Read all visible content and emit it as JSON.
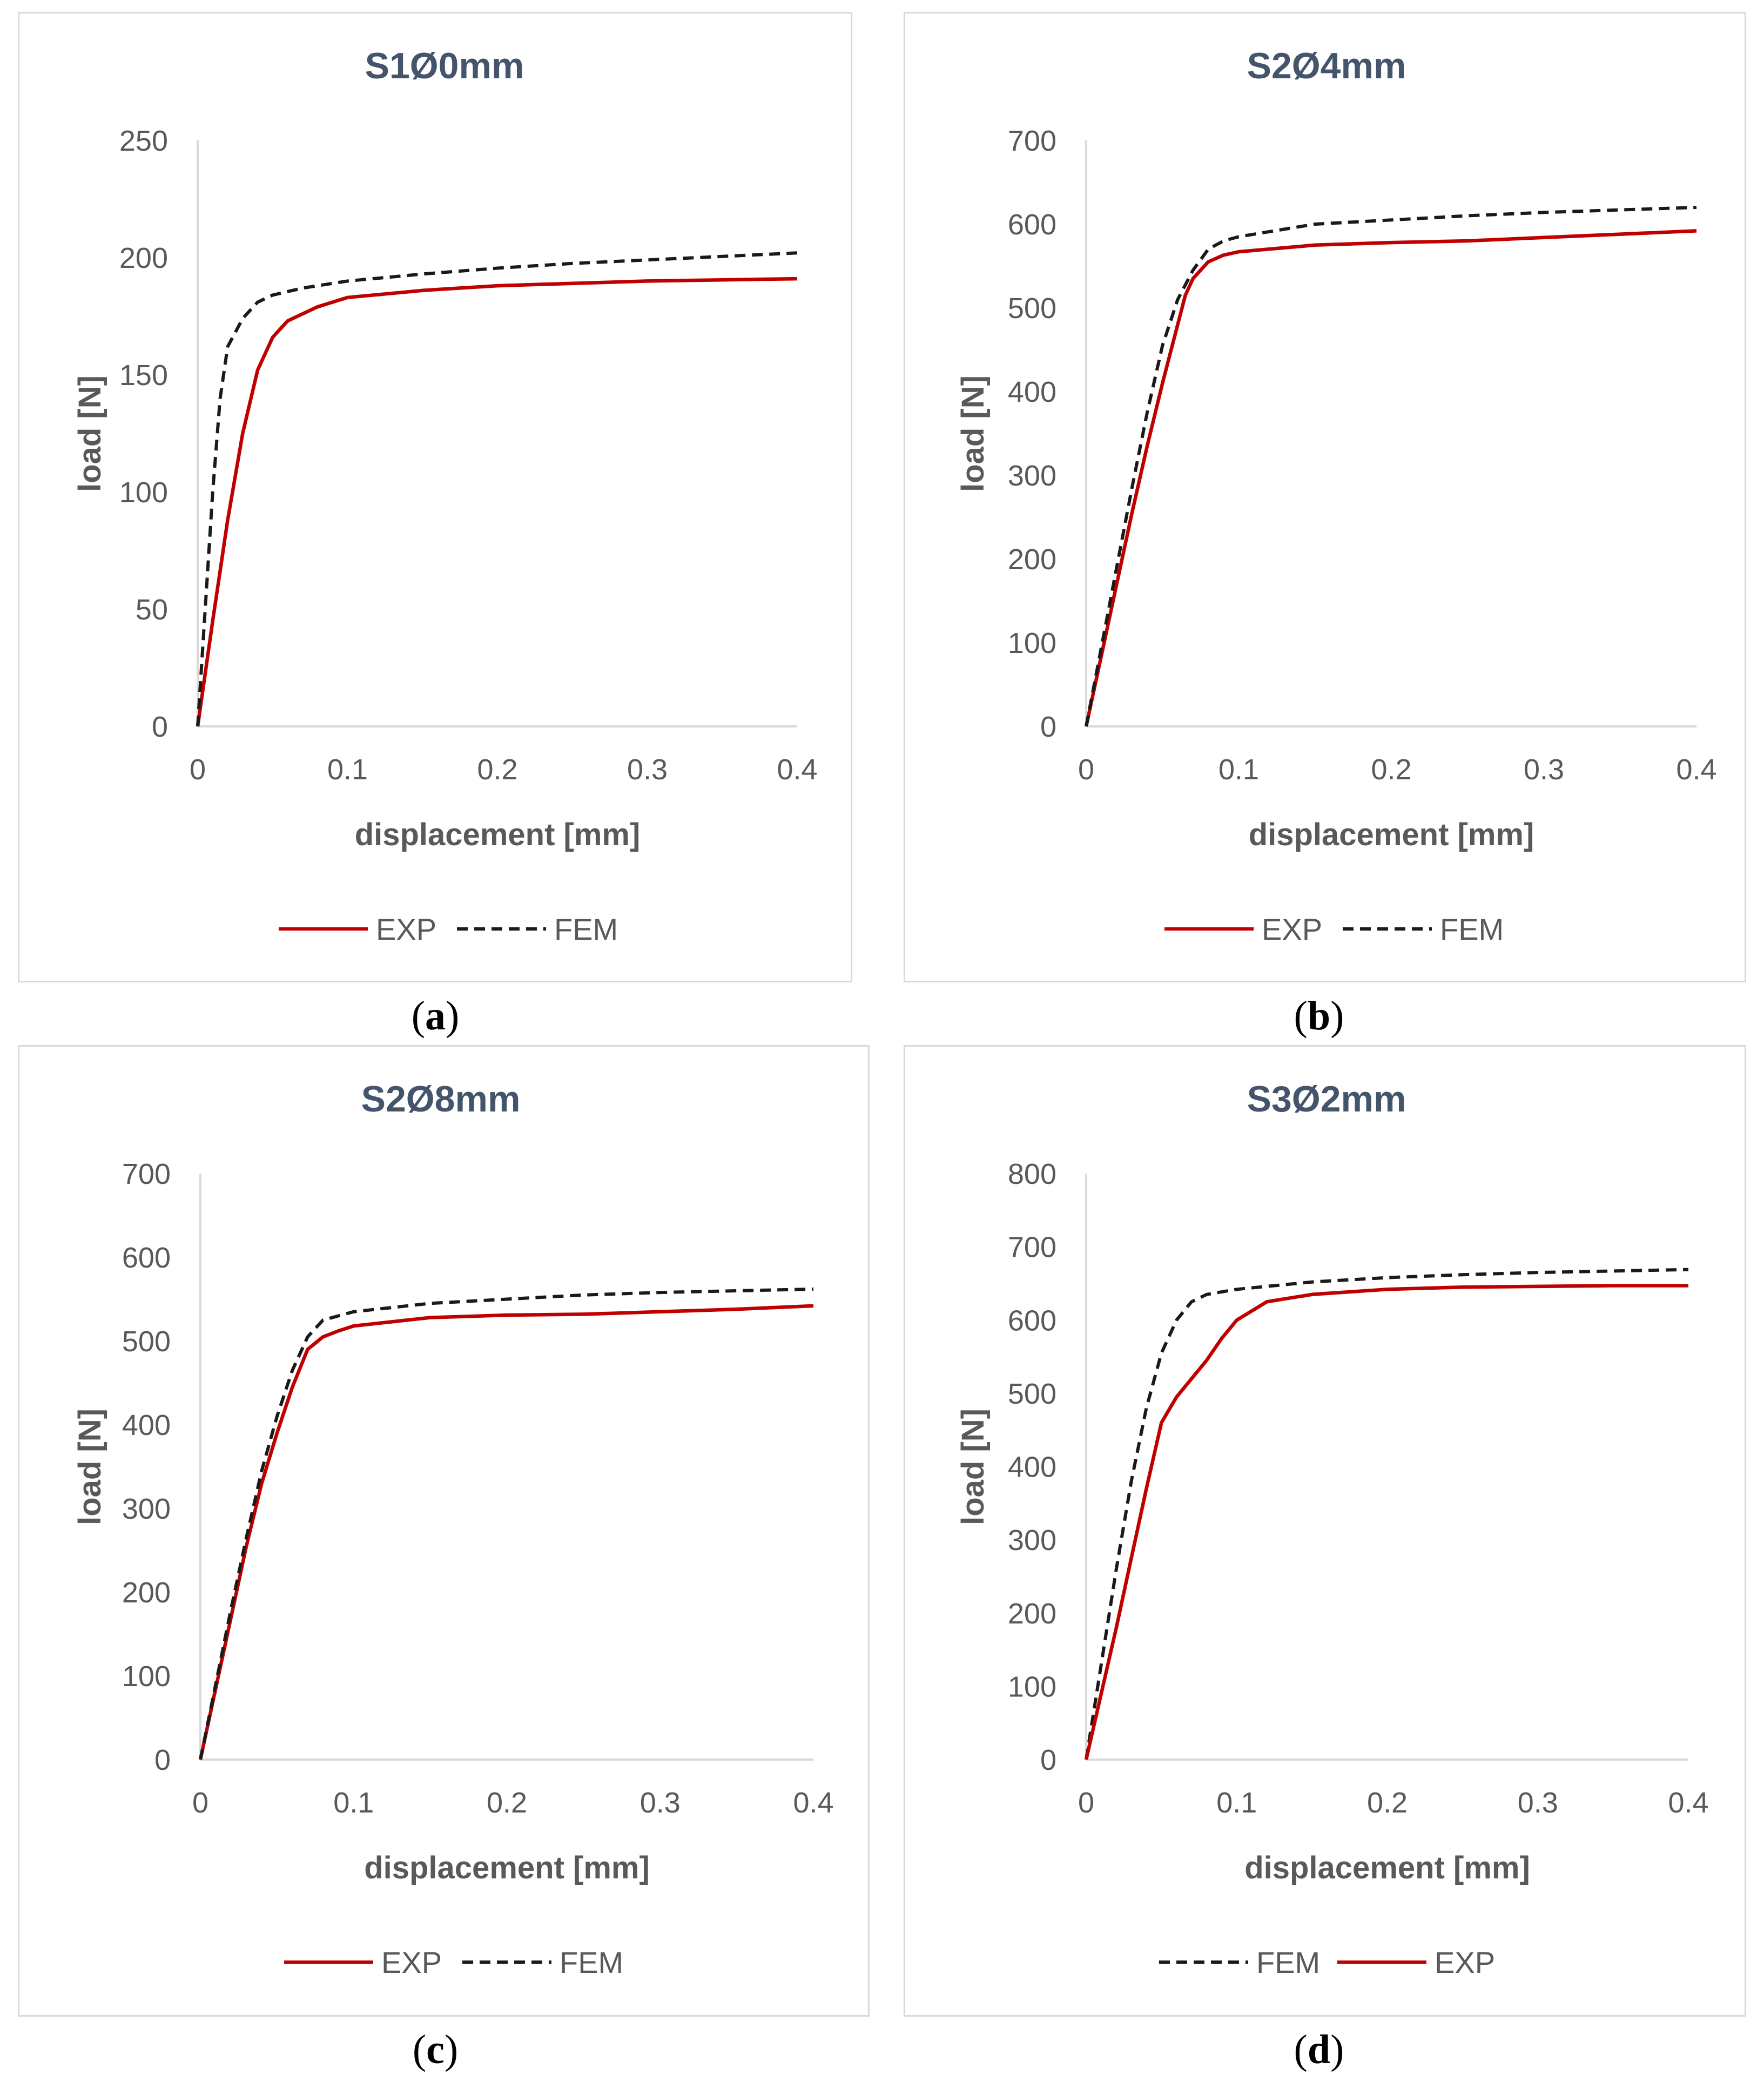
{
  "colors": {
    "exp": "#c00000",
    "fem": "#1a1a1a",
    "axis": "#d9d9d9",
    "text": "#595959",
    "title": "#44546a"
  },
  "chart_data": [
    {
      "type": "line",
      "panel_label": "a",
      "title": "S1Ø0mm",
      "xlabel": "displacement [mm]",
      "ylabel": "load [N]",
      "xlim": [
        0,
        0.4
      ],
      "ylim": [
        0,
        250
      ],
      "xticks": [
        "0",
        "0.1",
        "0.2",
        "0.3",
        "0.4"
      ],
      "yticks": [
        "0",
        "50",
        "100",
        "150",
        "200",
        "250"
      ],
      "grid": false,
      "legend_order": [
        "EXP",
        "FEM"
      ],
      "series": [
        {
          "name": "EXP",
          "style": "solid",
          "x": [
            0,
            0.01,
            0.02,
            0.03,
            0.04,
            0.05,
            0.06,
            0.08,
            0.1,
            0.15,
            0.2,
            0.25,
            0.3,
            0.35,
            0.4
          ],
          "y": [
            0,
            45,
            88,
            125,
            152,
            166,
            173,
            179,
            183,
            186,
            188,
            189,
            190,
            190.5,
            191
          ]
        },
        {
          "name": "FEM",
          "style": "dashed",
          "x": [
            0,
            0.005,
            0.01,
            0.015,
            0.02,
            0.03,
            0.04,
            0.05,
            0.07,
            0.1,
            0.15,
            0.2,
            0.25,
            0.3,
            0.35,
            0.4
          ],
          "y": [
            0,
            50,
            100,
            140,
            162,
            174,
            181,
            184,
            187,
            190,
            193,
            195.5,
            197.5,
            199,
            200.5,
            202
          ]
        }
      ]
    },
    {
      "type": "line",
      "panel_label": "b",
      "title": "S2Ø4mm",
      "xlabel": "displacement [mm]",
      "ylabel": "load [N]",
      "xlim": [
        0,
        0.4
      ],
      "ylim": [
        0,
        700
      ],
      "xticks": [
        "0",
        "0.1",
        "0.2",
        "0.3",
        "0.4"
      ],
      "yticks": [
        "0",
        "100",
        "200",
        "300",
        "400",
        "500",
        "600",
        "700"
      ],
      "grid": false,
      "legend_order": [
        "EXP",
        "FEM"
      ],
      "series": [
        {
          "name": "EXP",
          "style": "solid",
          "x": [
            0,
            0.01,
            0.02,
            0.03,
            0.04,
            0.05,
            0.06,
            0.065,
            0.07,
            0.08,
            0.09,
            0.1,
            0.15,
            0.2,
            0.25,
            0.3,
            0.35,
            0.4
          ],
          "y": [
            0,
            85,
            170,
            255,
            335,
            410,
            480,
            515,
            535,
            555,
            563,
            567,
            575,
            578,
            580,
            584,
            588,
            592
          ]
        },
        {
          "name": "FEM",
          "style": "dashed",
          "x": [
            0,
            0.01,
            0.02,
            0.03,
            0.04,
            0.05,
            0.06,
            0.07,
            0.08,
            0.09,
            0.1,
            0.15,
            0.2,
            0.25,
            0.3,
            0.35,
            0.4
          ],
          "y": [
            0,
            95,
            190,
            285,
            375,
            455,
            510,
            545,
            570,
            580,
            585,
            600,
            605,
            610,
            614,
            617,
            620
          ]
        }
      ]
    },
    {
      "type": "line",
      "panel_label": "c",
      "title": "S2Ø8mm",
      "xlabel": "displacement [mm]",
      "ylabel": "load [N]",
      "xlim": [
        0,
        0.4
      ],
      "ylim": [
        0,
        700
      ],
      "xticks": [
        "0",
        "0.1",
        "0.2",
        "0.3",
        "0.4"
      ],
      "yticks": [
        "0",
        "100",
        "200",
        "300",
        "400",
        "500",
        "600",
        "700"
      ],
      "grid": false,
      "legend_order": [
        "EXP",
        "FEM"
      ],
      "series": [
        {
          "name": "EXP",
          "style": "solid",
          "x": [
            0,
            0.01,
            0.02,
            0.03,
            0.04,
            0.05,
            0.06,
            0.07,
            0.08,
            0.09,
            0.1,
            0.15,
            0.2,
            0.25,
            0.3,
            0.35,
            0.4
          ],
          "y": [
            0,
            85,
            170,
            255,
            330,
            390,
            445,
            490,
            505,
            512,
            518,
            528,
            531,
            532,
            535,
            538,
            542
          ]
        },
        {
          "name": "FEM",
          "style": "dashed",
          "x": [
            0,
            0.01,
            0.02,
            0.03,
            0.04,
            0.05,
            0.06,
            0.07,
            0.08,
            0.09,
            0.1,
            0.15,
            0.2,
            0.25,
            0.3,
            0.35,
            0.4
          ],
          "y": [
            0,
            90,
            180,
            265,
            345,
            410,
            465,
            505,
            525,
            530,
            535,
            545,
            550,
            555,
            558,
            560,
            562
          ]
        }
      ]
    },
    {
      "type": "line",
      "panel_label": "d",
      "title": "S3Ø2mm",
      "xlabel": "displacement [mm]",
      "ylabel": "load [N]",
      "xlim": [
        0,
        0.4
      ],
      "ylim": [
        0,
        800
      ],
      "xticks": [
        "0",
        "0.1",
        "0.2",
        "0.3",
        "0.4"
      ],
      "yticks": [
        "0",
        "100",
        "200",
        "300",
        "400",
        "500",
        "600",
        "700",
        "800"
      ],
      "grid": false,
      "legend_order": [
        "FEM",
        "EXP"
      ],
      "series": [
        {
          "name": "FEM",
          "style": "dashed",
          "x": [
            0,
            0.01,
            0.02,
            0.03,
            0.04,
            0.05,
            0.06,
            0.07,
            0.08,
            0.1,
            0.15,
            0.2,
            0.25,
            0.3,
            0.35,
            0.4
          ],
          "y": [
            0,
            130,
            260,
            380,
            480,
            555,
            600,
            625,
            635,
            642,
            652,
            658,
            662,
            665,
            667,
            669
          ]
        },
        {
          "name": "EXP",
          "style": "solid",
          "x": [
            0,
            0.01,
            0.02,
            0.03,
            0.04,
            0.05,
            0.06,
            0.07,
            0.08,
            0.09,
            0.1,
            0.12,
            0.15,
            0.2,
            0.25,
            0.3,
            0.35,
            0.4
          ],
          "y": [
            0,
            90,
            180,
            275,
            370,
            460,
            495,
            520,
            545,
            575,
            600,
            625,
            635,
            642,
            645,
            646,
            647,
            647
          ]
        }
      ]
    }
  ]
}
